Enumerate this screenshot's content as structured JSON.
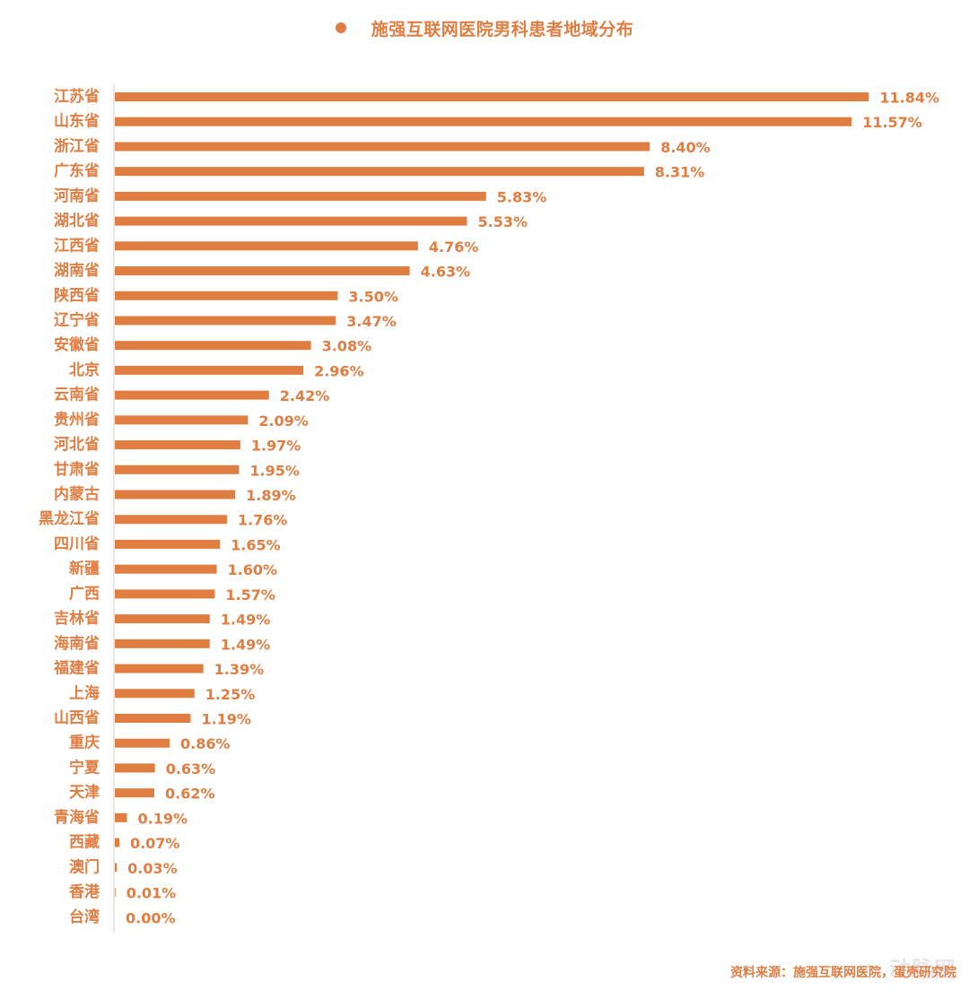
{
  "colors": {
    "bar": "#E07E42",
    "text": "#E07E42",
    "axis": "#cfcfcf"
  },
  "watermark": "动脉网",
  "source": "资料来源：施强互联网医院，蛋壳研究院",
  "chart_data": {
    "type": "bar",
    "orientation": "horizontal",
    "legend": {
      "placement": "top-center",
      "entries": [
        "施强互联网医院男科患者地域分布"
      ]
    },
    "series": [
      {
        "name": "施强互联网医院男科患者地域分布"
      }
    ],
    "xlim": [
      0,
      12.3
    ],
    "grid": false,
    "unit": "%",
    "categories": [
      "江苏省",
      "山东省",
      "浙江省",
      "广东省",
      "河南省",
      "湖北省",
      "江西省",
      "湖南省",
      "陕西省",
      "辽宁省",
      "安徽省",
      "北京",
      "云南省",
      "贵州省",
      "河北省",
      "甘肃省",
      "内蒙古",
      "黑龙江省",
      "四川省",
      "新疆",
      "广西",
      "吉林省",
      "海南省",
      "福建省",
      "上海",
      "山西省",
      "重庆",
      "宁夏",
      "天津",
      "青海省",
      "西藏",
      "澳门",
      "香港",
      "台湾"
    ],
    "values": [
      11.84,
      11.57,
      8.4,
      8.31,
      5.83,
      5.53,
      4.76,
      4.63,
      3.5,
      3.47,
      3.08,
      2.96,
      2.42,
      2.09,
      1.97,
      1.95,
      1.89,
      1.76,
      1.65,
      1.6,
      1.57,
      1.49,
      1.49,
      1.39,
      1.25,
      1.19,
      0.86,
      0.63,
      0.62,
      0.19,
      0.07,
      0.03,
      0.01,
      0.0
    ],
    "value_labels": [
      "11.84%",
      "11.57%",
      "8.40%",
      "8.31%",
      "5.83%",
      "5.53%",
      "4.76%",
      "4.63%",
      "3.50%",
      "3.47%",
      "3.08%",
      "2.96%",
      "2.42%",
      "2.09%",
      "1.97%",
      "1.95%",
      "1.89%",
      "1.76%",
      "1.65%",
      "1.60%",
      "1.57%",
      "1.49%",
      "1.49%",
      "1.39%",
      "1.25%",
      "1.19%",
      "0.86%",
      "0.63%",
      "0.62%",
      "0.19%",
      "0.07%",
      "0.03%",
      "0.01%",
      "0.00%"
    ]
  }
}
